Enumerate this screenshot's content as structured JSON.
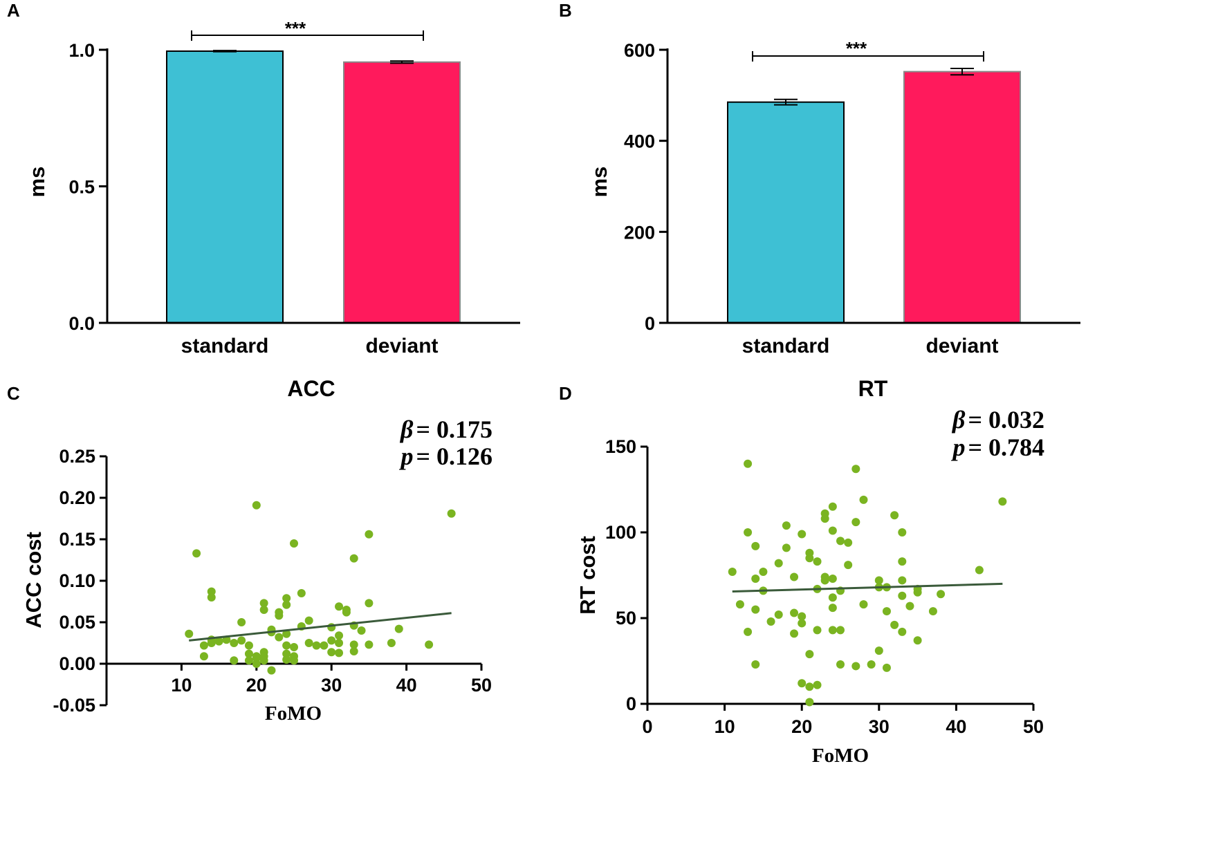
{
  "colors": {
    "standard": "#3ec0d4",
    "deviant": "#ff1a5c",
    "point": "#7ab421",
    "fit_line": "#3a5a3a",
    "axis": "#000000"
  },
  "chart_data": [
    {
      "panel": "A",
      "type": "bar",
      "title": "",
      "categories": [
        "standard",
        "deviant"
      ],
      "values": [
        0.995,
        0.955
      ],
      "errors": [
        0.002,
        0.004
      ],
      "ylabel": "ms",
      "xlabel": "",
      "ylim": [
        0,
        1.0
      ],
      "yticks": [
        0.0,
        0.5,
        1.0
      ],
      "ytick_labels": [
        "0.0",
        "0.5",
        "1.0"
      ],
      "significance": "***"
    },
    {
      "panel": "B",
      "type": "bar",
      "title": "",
      "categories": [
        "standard",
        "deviant"
      ],
      "values": [
        485,
        552
      ],
      "errors": [
        6,
        7
      ],
      "ylabel": "ms",
      "xlabel": "",
      "ylim": [
        0,
        600
      ],
      "yticks": [
        0,
        200,
        400,
        600
      ],
      "ytick_labels": [
        "0",
        "200",
        "400",
        "600"
      ],
      "significance": "***"
    },
    {
      "panel": "C",
      "type": "scatter",
      "title": "ACC",
      "xlabel": "FoMO",
      "ylabel": "ACC cost",
      "xlim": [
        0,
        50
      ],
      "ylim": [
        -0.05,
        0.25
      ],
      "xticks": [
        10,
        20,
        30,
        40,
        50
      ],
      "xtick_labels": [
        "10",
        "20",
        "30",
        "40",
        "50"
      ],
      "yticks": [
        -0.05,
        0.0,
        0.05,
        0.1,
        0.15,
        0.2,
        0.25
      ],
      "ytick_labels": [
        "-0.05",
        "0.00",
        "0.05",
        "0.10",
        "0.15",
        "0.20",
        "0.25"
      ],
      "annotation": {
        "beta_symbol": "β",
        "beta_text": "= 0.175",
        "p_symbol": "p",
        "p_text": "= 0.126"
      },
      "fit_line": {
        "x": [
          11,
          46
        ],
        "y": [
          0.028,
          0.061
        ]
      },
      "points": [
        [
          11,
          0.036
        ],
        [
          12,
          0.133
        ],
        [
          13,
          0.009
        ],
        [
          13,
          0.022
        ],
        [
          14,
          0.025
        ],
        [
          14,
          0.029
        ],
        [
          14,
          0.087
        ],
        [
          14,
          0.08
        ],
        [
          15,
          0.027
        ],
        [
          16,
          0.029
        ],
        [
          17,
          0.025
        ],
        [
          17,
          0.004
        ],
        [
          18,
          0.028
        ],
        [
          18,
          0.05
        ],
        [
          19,
          0.022
        ],
        [
          19,
          0.012
        ],
        [
          19,
          0.004
        ],
        [
          20,
          0.191
        ],
        [
          20,
          0.009
        ],
        [
          20,
          0.007
        ],
        [
          20,
          0.0
        ],
        [
          21,
          0.073
        ],
        [
          21,
          0.065
        ],
        [
          21,
          0.014
        ],
        [
          21,
          0.009
        ],
        [
          21,
          0.004
        ],
        [
          22,
          -0.008
        ],
        [
          22,
          0.041
        ],
        [
          22,
          0.038
        ],
        [
          23,
          0.032
        ],
        [
          23,
          0.058
        ],
        [
          23,
          0.062
        ],
        [
          24,
          0.079
        ],
        [
          24,
          0.071
        ],
        [
          24,
          0.036
        ],
        [
          24,
          0.022
        ],
        [
          24,
          0.012
        ],
        [
          24,
          0.005
        ],
        [
          25,
          0.145
        ],
        [
          25,
          0.009
        ],
        [
          25,
          0.004
        ],
        [
          25,
          0.02
        ],
        [
          26,
          0.085
        ],
        [
          26,
          0.045
        ],
        [
          27,
          0.052
        ],
        [
          27,
          0.025
        ],
        [
          28,
          0.022
        ],
        [
          29,
          0.022
        ],
        [
          30,
          0.044
        ],
        [
          30,
          0.028
        ],
        [
          30,
          0.014
        ],
        [
          31,
          0.069
        ],
        [
          31,
          0.034
        ],
        [
          31,
          0.025
        ],
        [
          31,
          0.013
        ],
        [
          32,
          0.065
        ],
        [
          32,
          0.062
        ],
        [
          33,
          0.127
        ],
        [
          33,
          0.046
        ],
        [
          33,
          0.023
        ],
        [
          33,
          0.015
        ],
        [
          34,
          0.04
        ],
        [
          35,
          0.156
        ],
        [
          35,
          0.073
        ],
        [
          35,
          0.023
        ],
        [
          38,
          0.025
        ],
        [
          39,
          0.042
        ],
        [
          43,
          0.023
        ],
        [
          46,
          0.181
        ]
      ]
    },
    {
      "panel": "D",
      "type": "scatter",
      "title": "RT",
      "xlabel": "FoMO",
      "ylabel": "RT cost",
      "xlim": [
        0,
        50
      ],
      "ylim": [
        0,
        150
      ],
      "xticks": [
        0,
        10,
        20,
        30,
        40,
        50
      ],
      "xtick_labels": [
        "0",
        "10",
        "20",
        "30",
        "40",
        "50"
      ],
      "yticks": [
        0,
        50,
        100,
        150
      ],
      "ytick_labels": [
        "0",
        "50",
        "100",
        "150"
      ],
      "annotation": {
        "beta_symbol": "β",
        "beta_text": "= 0.032",
        "p_symbol": "p",
        "p_text": "= 0.784"
      },
      "fit_line": {
        "x": [
          11,
          46
        ],
        "y": [
          65.5,
          70
        ]
      },
      "points": [
        [
          11,
          77
        ],
        [
          12,
          58
        ],
        [
          13,
          140
        ],
        [
          13,
          100
        ],
        [
          13,
          42
        ],
        [
          14,
          92
        ],
        [
          14,
          73
        ],
        [
          14,
          55
        ],
        [
          14,
          23
        ],
        [
          15,
          77
        ],
        [
          15,
          66
        ],
        [
          16,
          48
        ],
        [
          17,
          82
        ],
        [
          17,
          52
        ],
        [
          18,
          104
        ],
        [
          18,
          91
        ],
        [
          19,
          74
        ],
        [
          19,
          53
        ],
        [
          19,
          41
        ],
        [
          20,
          99
        ],
        [
          20,
          51
        ],
        [
          20,
          47
        ],
        [
          20,
          12
        ],
        [
          21,
          88
        ],
        [
          21,
          85
        ],
        [
          21,
          29
        ],
        [
          21,
          10
        ],
        [
          21,
          1
        ],
        [
          22,
          83
        ],
        [
          22,
          67
        ],
        [
          22,
          43
        ],
        [
          22,
          11
        ],
        [
          23,
          111
        ],
        [
          23,
          108
        ],
        [
          23,
          74
        ],
        [
          23,
          72
        ],
        [
          24,
          115
        ],
        [
          24,
          101
        ],
        [
          24,
          73
        ],
        [
          24,
          62
        ],
        [
          24,
          56
        ],
        [
          24,
          43
        ],
        [
          25,
          95
        ],
        [
          25,
          66
        ],
        [
          25,
          43
        ],
        [
          25,
          23
        ],
        [
          26,
          94
        ],
        [
          26,
          81
        ],
        [
          27,
          137
        ],
        [
          27,
          106
        ],
        [
          27,
          22
        ],
        [
          28,
          119
        ],
        [
          28,
          58
        ],
        [
          29,
          23
        ],
        [
          30,
          72
        ],
        [
          30,
          68
        ],
        [
          30,
          31
        ],
        [
          31,
          68
        ],
        [
          31,
          54
        ],
        [
          31,
          21
        ],
        [
          32,
          110
        ],
        [
          32,
          46
        ],
        [
          33,
          100
        ],
        [
          33,
          83
        ],
        [
          33,
          72
        ],
        [
          33,
          63
        ],
        [
          33,
          42
        ],
        [
          34,
          57
        ],
        [
          35,
          67
        ],
        [
          35,
          65
        ],
        [
          35,
          37
        ],
        [
          37,
          54
        ],
        [
          38,
          64
        ],
        [
          43,
          78
        ],
        [
          46,
          118
        ]
      ]
    }
  ]
}
